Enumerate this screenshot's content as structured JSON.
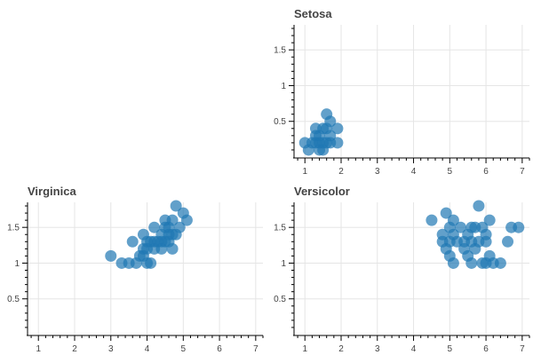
{
  "chart_data": [
    {
      "type": "scatter",
      "title": "Setosa",
      "xlim": [
        0.7,
        7.2
      ],
      "ylim": [
        0,
        1.85
      ],
      "xticks": [
        1,
        2,
        3,
        4,
        5,
        6,
        7
      ],
      "yticks": [
        0.5,
        1,
        1.5
      ],
      "grid": true,
      "color": "#1f77b4",
      "points": [
        [
          1.0,
          0.2
        ],
        [
          1.1,
          0.1
        ],
        [
          1.2,
          0.2
        ],
        [
          1.3,
          0.2
        ],
        [
          1.3,
          0.3
        ],
        [
          1.3,
          0.4
        ],
        [
          1.4,
          0.1
        ],
        [
          1.4,
          0.2
        ],
        [
          1.4,
          0.3
        ],
        [
          1.5,
          0.1
        ],
        [
          1.5,
          0.2
        ],
        [
          1.5,
          0.4
        ],
        [
          1.6,
          0.2
        ],
        [
          1.6,
          0.4
        ],
        [
          1.6,
          0.6
        ],
        [
          1.7,
          0.2
        ],
        [
          1.7,
          0.3
        ],
        [
          1.7,
          0.5
        ],
        [
          1.9,
          0.2
        ],
        [
          1.9,
          0.4
        ]
      ]
    },
    {
      "type": "scatter",
      "title": "Virginica",
      "xlim": [
        0.7,
        7.2
      ],
      "ylim": [
        0,
        1.85
      ],
      "xticks": [
        1,
        2,
        3,
        4,
        5,
        6,
        7
      ],
      "yticks": [
        0.5,
        1,
        1.5
      ],
      "grid": true,
      "color": "#1f77b4",
      "points": [
        [
          3.0,
          1.1
        ],
        [
          3.3,
          1.0
        ],
        [
          3.5,
          1.0
        ],
        [
          3.6,
          1.3
        ],
        [
          3.7,
          1.0
        ],
        [
          3.8,
          1.1
        ],
        [
          3.9,
          1.1
        ],
        [
          3.9,
          1.2
        ],
        [
          3.9,
          1.4
        ],
        [
          4.0,
          1.0
        ],
        [
          4.0,
          1.2
        ],
        [
          4.0,
          1.3
        ],
        [
          4.1,
          1.0
        ],
        [
          4.1,
          1.3
        ],
        [
          4.2,
          1.2
        ],
        [
          4.2,
          1.3
        ],
        [
          4.2,
          1.5
        ],
        [
          4.3,
          1.3
        ],
        [
          4.4,
          1.2
        ],
        [
          4.4,
          1.3
        ],
        [
          4.4,
          1.4
        ],
        [
          4.5,
          1.3
        ],
        [
          4.5,
          1.5
        ],
        [
          4.5,
          1.6
        ],
        [
          4.6,
          1.3
        ],
        [
          4.6,
          1.4
        ],
        [
          4.6,
          1.5
        ],
        [
          4.7,
          1.2
        ],
        [
          4.7,
          1.4
        ],
        [
          4.7,
          1.6
        ],
        [
          4.8,
          1.4
        ],
        [
          4.8,
          1.8
        ],
        [
          4.9,
          1.5
        ],
        [
          5.0,
          1.7
        ],
        [
          5.1,
          1.6
        ]
      ]
    },
    {
      "type": "scatter",
      "title": "Versicolor",
      "xlim": [
        0.7,
        7.2
      ],
      "ylim": [
        0,
        1.85
      ],
      "xticks": [
        1,
        2,
        3,
        4,
        5,
        6,
        7
      ],
      "yticks": [
        0.5,
        1,
        1.5
      ],
      "grid": true,
      "color": "#1f77b4",
      "points": [
        [
          4.5,
          1.6
        ],
        [
          4.8,
          1.4
        ],
        [
          4.8,
          1.3
        ],
        [
          4.9,
          1.7
        ],
        [
          4.9,
          1.2
        ],
        [
          5.0,
          1.3
        ],
        [
          5.0,
          1.1
        ],
        [
          5.0,
          1.5
        ],
        [
          5.1,
          1.0
        ],
        [
          5.1,
          1.4
        ],
        [
          5.1,
          1.6
        ],
        [
          5.2,
          1.3
        ],
        [
          5.3,
          1.5
        ],
        [
          5.4,
          1.2
        ],
        [
          5.4,
          1.3
        ],
        [
          5.5,
          1.1
        ],
        [
          5.5,
          1.4
        ],
        [
          5.6,
          1.0
        ],
        [
          5.6,
          1.3
        ],
        [
          5.6,
          1.5
        ],
        [
          5.7,
          1.2
        ],
        [
          5.7,
          1.5
        ],
        [
          5.8,
          1.3
        ],
        [
          5.8,
          1.8
        ],
        [
          5.9,
          1.0
        ],
        [
          5.9,
          1.5
        ],
        [
          6.0,
          1.0
        ],
        [
          6.0,
          1.3
        ],
        [
          6.0,
          1.4
        ],
        [
          6.1,
          1.1
        ],
        [
          6.1,
          1.6
        ],
        [
          6.2,
          1.0
        ],
        [
          6.4,
          1.0
        ],
        [
          6.6,
          1.3
        ],
        [
          6.7,
          1.5
        ],
        [
          6.9,
          1.5
        ]
      ]
    }
  ]
}
